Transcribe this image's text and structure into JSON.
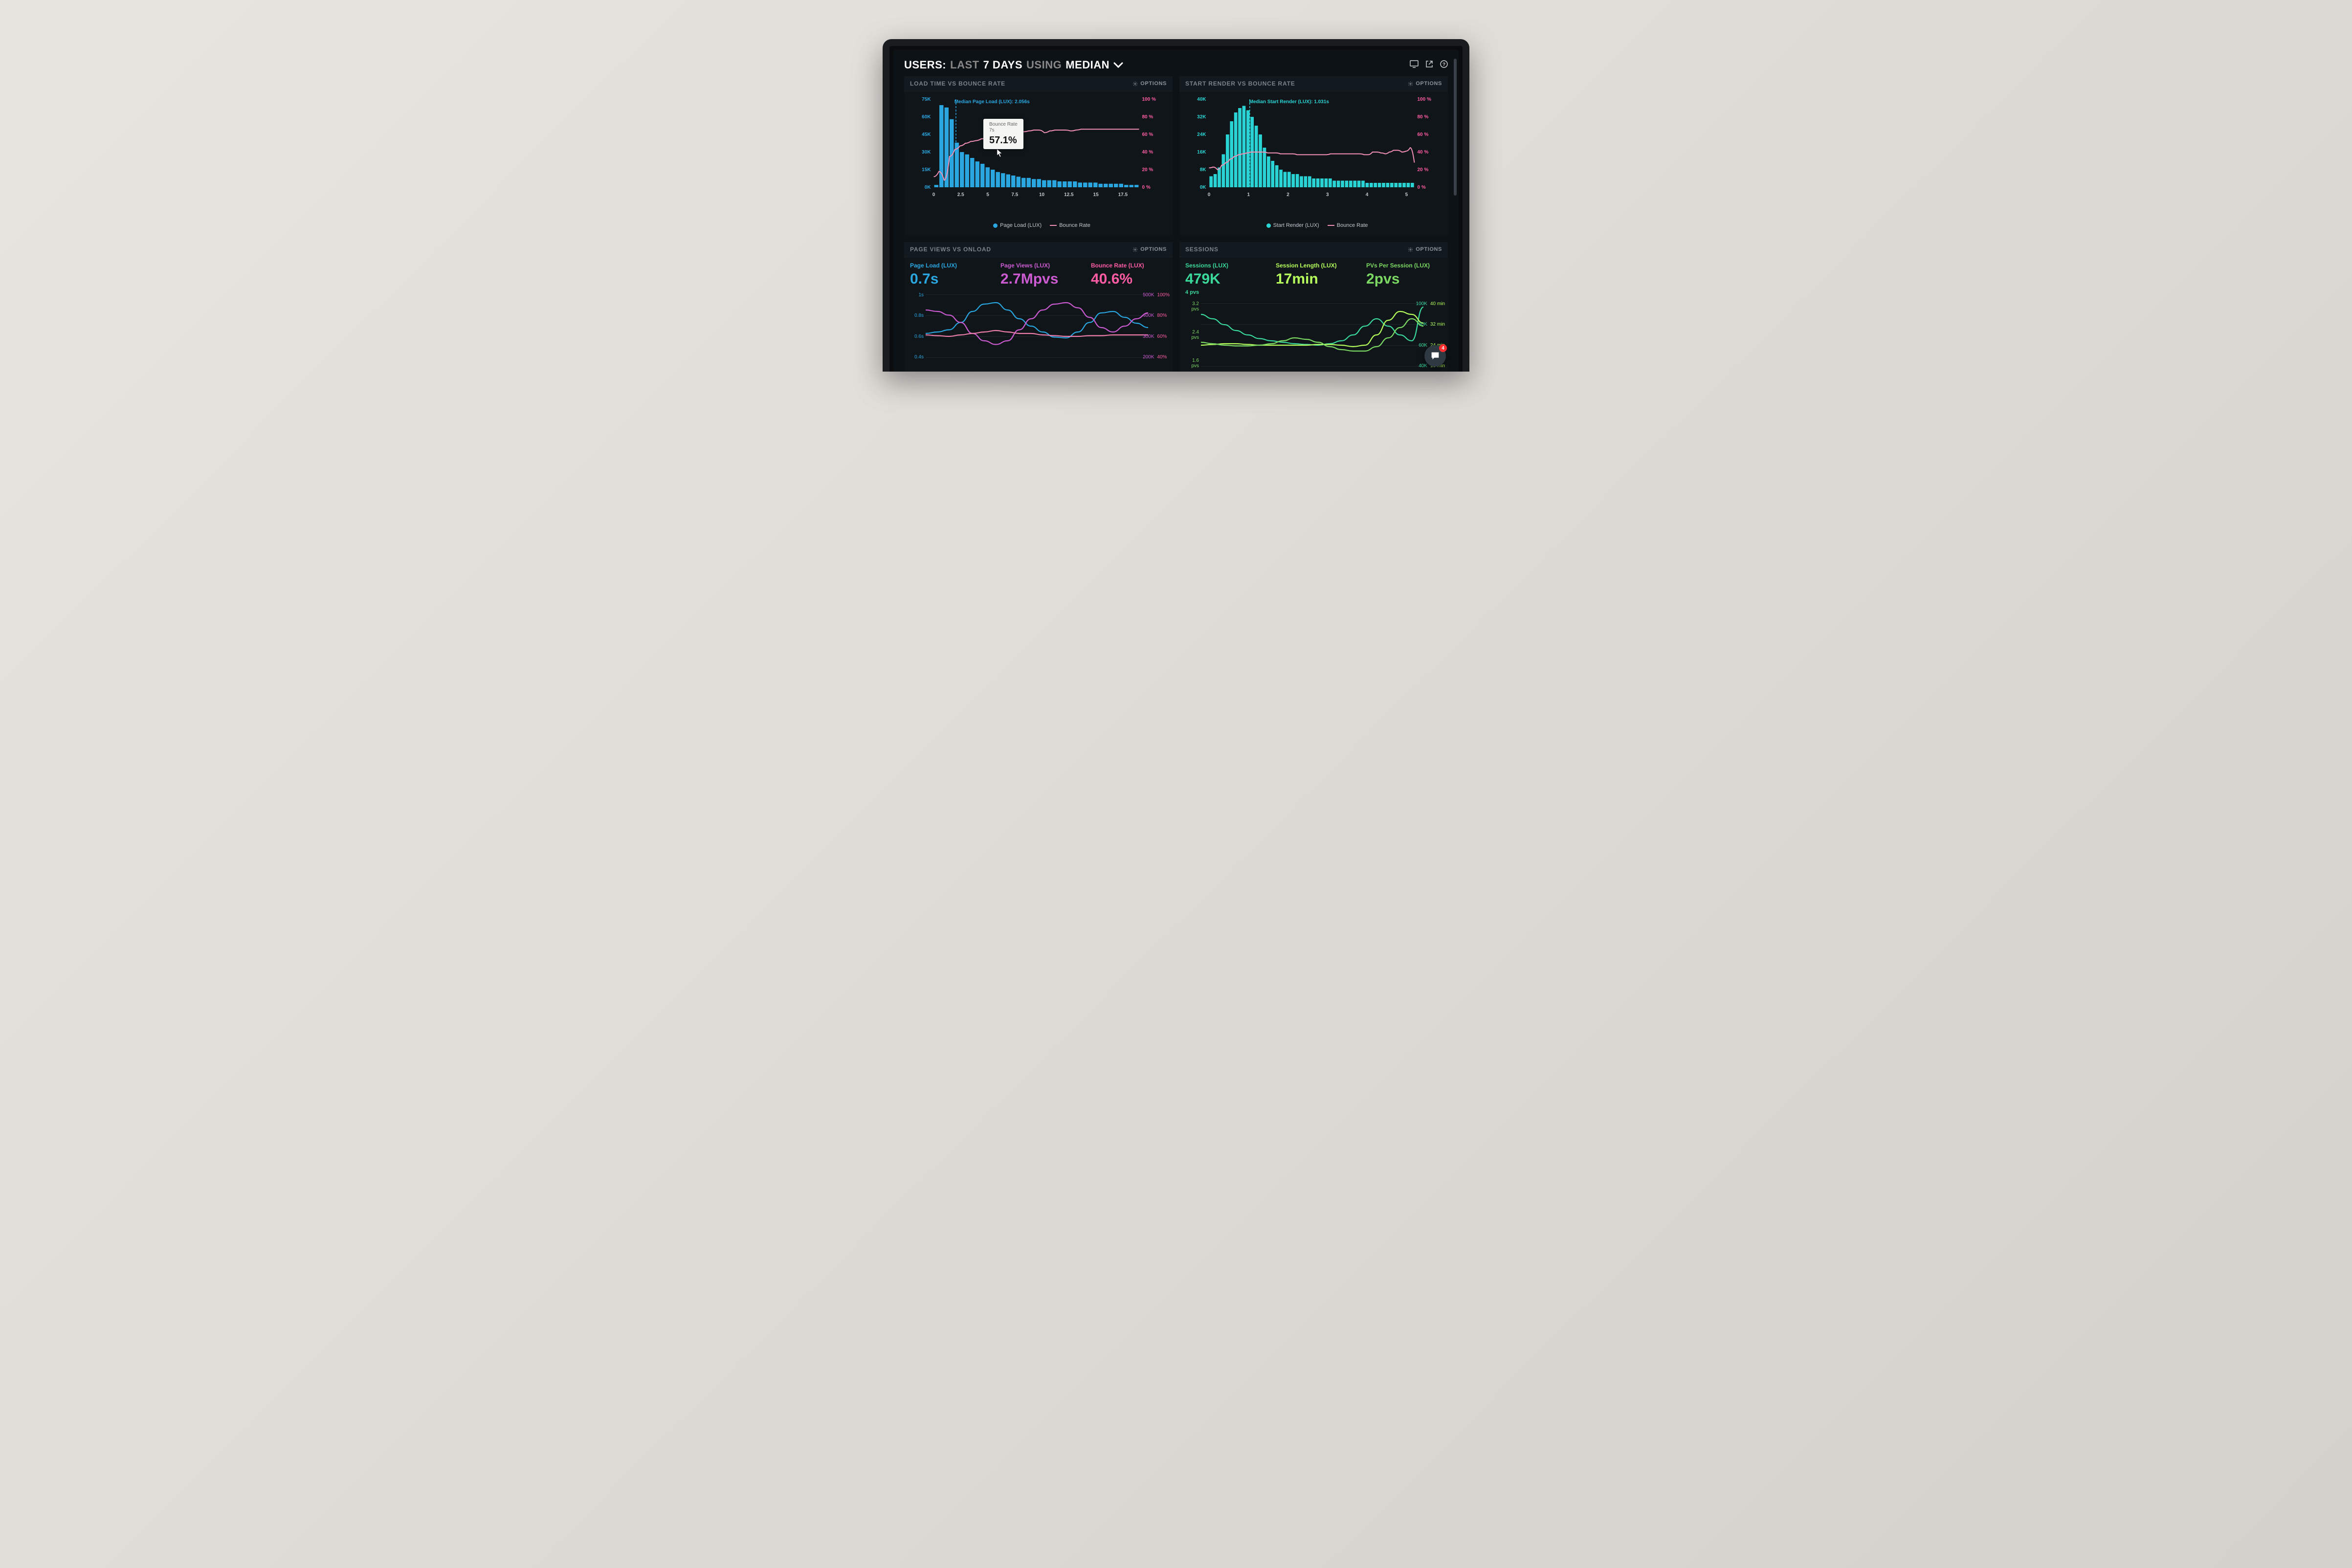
{
  "colors": {
    "bg": "#0d1216",
    "panel_bg": "#0f1519",
    "text_dim": "#7a838b",
    "blue": "#2aa7e0",
    "cyan": "#2bd4d4",
    "pink": "#f07fb0",
    "magenta": "#cc5bd1",
    "red_pink": "#ff5ca3",
    "green": "#7bd862",
    "lime": "#b6ff5c",
    "teal": "#2fd9a4",
    "session_green": "#3ad99b"
  },
  "header": {
    "prefix": "USERS:",
    "last": "LAST",
    "days": "7 DAYS",
    "using": "USING",
    "median": "MEDIAN"
  },
  "header_icons": {
    "monitor": "monitor-icon",
    "share": "share-icon",
    "help": "help-icon"
  },
  "options_label": "OPTIONS",
  "panel1": {
    "title": "LOAD TIME VS BOUNCE RATE",
    "median_label": "Median Page Load (LUX): 2.056s",
    "median_x": 2.056,
    "tooltip": {
      "label": "Bounce Rate",
      "time": "7s",
      "value": "57.1%"
    },
    "y_left": {
      "max": 75,
      "step": 15,
      "unit": "K",
      "color": "#2aa7e0"
    },
    "y_right": {
      "max": 100,
      "step": 20,
      "unit": " %",
      "color": "#ff5ca3"
    },
    "x": {
      "min": 0,
      "max": 19,
      "ticks": [
        0,
        2.5,
        5,
        7.5,
        10,
        12.5,
        15,
        17.5
      ]
    },
    "bars": [
      2,
      70,
      68,
      58,
      38,
      30,
      28,
      25,
      22,
      20,
      17,
      15,
      13,
      12,
      11,
      10,
      9,
      8,
      8,
      7,
      7,
      6,
      6,
      6,
      5,
      5,
      5,
      5,
      4,
      4,
      4,
      4,
      3,
      3,
      3,
      3,
      3,
      2,
      2,
      2
    ],
    "bar_color": "#2aa7e0",
    "line": [
      12,
      18,
      8,
      35,
      43,
      47,
      50,
      52,
      53,
      55,
      56,
      57,
      57.5,
      58,
      60,
      62,
      63,
      63,
      64,
      65,
      65,
      62,
      64,
      65,
      65,
      65,
      64,
      65,
      66,
      66,
      66,
      66,
      66,
      66,
      66,
      66,
      66,
      66,
      66,
      66
    ],
    "line_color": "#f28fb5",
    "legend": {
      "bars": "Page Load (LUX)",
      "line": "Bounce Rate"
    }
  },
  "panel2": {
    "title": "START RENDER VS BOUNCE RATE",
    "median_label": "Median Start Render (LUX): 1.031s",
    "median_x": 1.031,
    "y_left": {
      "max": 40,
      "step": 8,
      "unit": "K",
      "color": "#2bd4d4"
    },
    "y_right": {
      "max": 100,
      "step": 20,
      "unit": " %",
      "color": "#ff5ca3"
    },
    "x": {
      "min": 0,
      "max": 5.2,
      "ticks": [
        0,
        1,
        2,
        3,
        4,
        5
      ]
    },
    "bars": [
      5,
      6,
      9,
      15,
      24,
      30,
      34,
      36,
      37,
      35,
      32,
      28,
      24,
      18,
      14,
      12,
      10,
      8,
      7,
      7,
      6,
      6,
      5,
      5,
      5,
      4,
      4,
      4,
      4,
      4,
      3,
      3,
      3,
      3,
      3,
      3,
      3,
      3,
      2,
      2,
      2,
      2,
      2,
      2,
      2,
      2,
      2,
      2,
      2,
      2
    ],
    "bar_color": "#2bd4d4",
    "line": [
      22,
      23,
      20,
      25,
      28,
      32,
      35,
      37,
      38,
      39,
      40,
      40,
      40,
      40,
      39,
      39,
      39,
      38,
      38,
      38,
      38,
      37,
      37,
      37,
      37,
      37,
      37,
      37,
      37,
      38,
      38,
      38,
      38,
      38,
      38,
      38,
      38,
      37,
      37,
      40,
      40,
      39,
      38,
      40,
      42,
      42,
      40,
      41,
      45,
      28
    ],
    "line_color": "#f28fb5",
    "legend": {
      "bars": "Start Render (LUX)",
      "line": "Bounce Rate"
    }
  },
  "panel3": {
    "title": "PAGE VIEWS VS ONLOAD",
    "stats": [
      {
        "label": "Page Load (LUX)",
        "value": "0.7s",
        "color": "#2aa7e0"
      },
      {
        "label": "Page Views (LUX)",
        "value": "2.7Mpvs",
        "color": "#cc5bd1"
      },
      {
        "label": "Bounce Rate (LUX)",
        "value": "40.6%",
        "color": "#ff5ca3"
      }
    ],
    "y_left": {
      "ticks": [
        "1s",
        "0.8s",
        "0.6s",
        "0.4s"
      ],
      "color": "#2aa7e0"
    },
    "y_right_a": {
      "ticks": [
        "500K",
        "400K",
        "300K",
        "200K"
      ],
      "color": "#cc5bd1"
    },
    "y_right_b": {
      "ticks": [
        "100%",
        "80%",
        "60%",
        "40%"
      ],
      "color": "#ff5ca3"
    },
    "series": {
      "blue": [
        40,
        42,
        45,
        55,
        70,
        80,
        82,
        72,
        60,
        50,
        42,
        35,
        34,
        42,
        55,
        68,
        70,
        62,
        54,
        48
      ],
      "magenta": [
        72,
        70,
        65,
        55,
        40,
        30,
        25,
        30,
        45,
        60,
        72,
        80,
        82,
        75,
        62,
        48,
        42,
        50,
        60,
        68
      ],
      "pink": [
        38,
        37,
        36,
        38,
        40,
        42,
        44,
        42,
        40,
        40,
        38,
        37,
        36,
        36,
        37,
        37,
        38,
        38,
        38,
        38
      ]
    }
  },
  "panel4": {
    "title": "SESSIONS",
    "stats": [
      {
        "label": "Sessions (LUX)",
        "value": "479K",
        "sub": "4 pvs",
        "color": "#3ad99b"
      },
      {
        "label": "Session Length (LUX)",
        "value": "17min",
        "color": "#b6ff5c"
      },
      {
        "label": "PVs Per Session (LUX)",
        "value": "2pvs",
        "color": "#7bd862"
      }
    ],
    "y_left": {
      "ticks": [
        "3.2 pvs",
        "2.4 pvs",
        "1.6 pvs"
      ],
      "color": "#7bd862"
    },
    "y_right_a": {
      "ticks": [
        "100K",
        "80K",
        "60K",
        "40K"
      ],
      "color": "#3ad99b"
    },
    "y_right_b": {
      "ticks": [
        "40 min",
        "32 min",
        "24 min",
        "16 min"
      ],
      "color": "#b6ff5c"
    },
    "series": {
      "teal": [
        78,
        72,
        64,
        56,
        50,
        45,
        42,
        40,
        38,
        37,
        36,
        38,
        42,
        50,
        62,
        72,
        62,
        50,
        42,
        88
      ],
      "lime": [
        36,
        37,
        38,
        38,
        37,
        36,
        36,
        36,
        36,
        36,
        37,
        37,
        36,
        34,
        36,
        50,
        70,
        82,
        78,
        66
      ],
      "green": [
        40,
        38,
        36,
        35,
        35,
        36,
        38,
        42,
        46,
        44,
        40,
        34,
        30,
        28,
        28,
        34,
        46,
        60,
        72,
        62
      ]
    }
  },
  "chat": {
    "badge": "4"
  }
}
